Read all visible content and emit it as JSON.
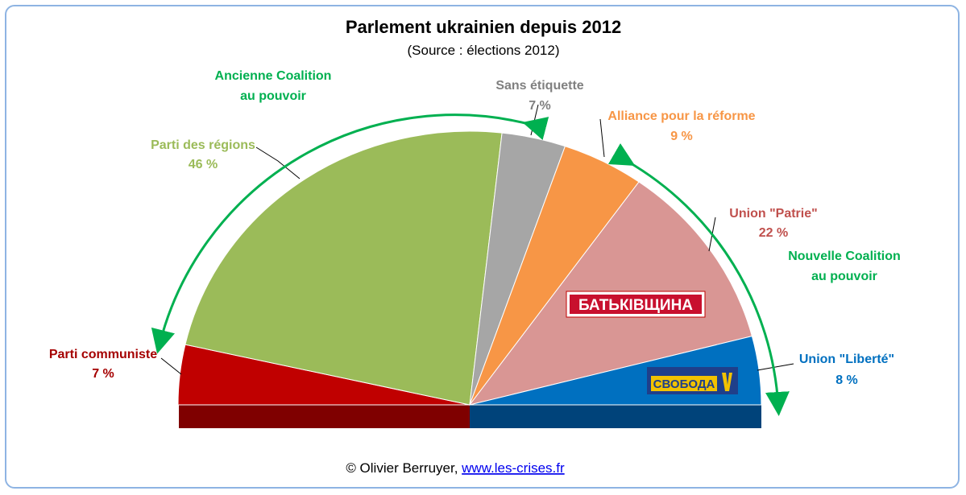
{
  "chart_data": {
    "type": "pie",
    "title": "Parlement ukrainien depuis 2012",
    "subtitle": "(Source : élections 2012)",
    "slices": [
      {
        "name": "Parti communiste",
        "value": 7,
        "label": "7 %",
        "color": "#c00000",
        "text_color": "#a50000"
      },
      {
        "name": "Parti des régions",
        "value": 46,
        "label": "46 %",
        "color": "#9bbb59",
        "text_color": "#9bbb59"
      },
      {
        "name": "Sans étiquette",
        "value": 7,
        "label": "7 %",
        "color": "#a6a6a6",
        "text_color": "#808080"
      },
      {
        "name": "Alliance pour la réforme",
        "value": 9,
        "label": "9 %",
        "color": "#f79646",
        "text_color": "#f79646"
      },
      {
        "name": "Union \"Patrie\"",
        "value": 22,
        "label": "22 %",
        "color": "#d99694",
        "text_color": "#c0504d"
      },
      {
        "name": "Union \"Liberté\"",
        "value": 8,
        "label": "8 %",
        "color": "#0070c0",
        "text_color": "#0070c0"
      }
    ],
    "annotations": {
      "old_coalition": {
        "line1": "Ancienne Coalition",
        "line2": "au pouvoir",
        "color": "#00b050"
      },
      "new_coalition": {
        "line1": "Nouvelle Coalition",
        "line2": "au pouvoir",
        "color": "#00b050"
      }
    },
    "logos": {
      "batkivshchyna": "БАТЬКІВЩИНА",
      "svoboda": "СВОБОДА"
    }
  },
  "footer": {
    "credit": "© Olivier Berruyer, ",
    "link": "www.les-crises.fr"
  }
}
